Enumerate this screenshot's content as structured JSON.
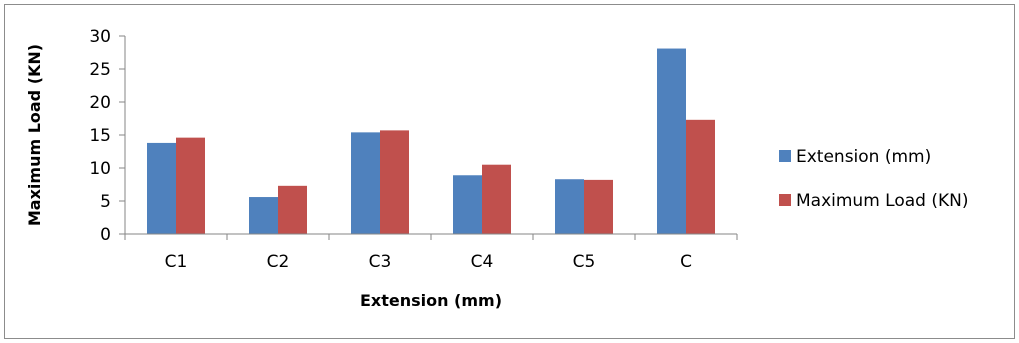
{
  "chart_data": {
    "type": "bar",
    "title": "",
    "xlabel": "Extension (mm)",
    "ylabel": "Maximum Load (KN)",
    "categories": [
      "C1",
      "C2",
      "C3",
      "C4",
      "C5",
      "C"
    ],
    "ylim": [
      0,
      30
    ],
    "yticks": [
      0,
      5,
      10,
      15,
      20,
      25,
      30
    ],
    "grid": false,
    "legend_position": "right",
    "series": [
      {
        "name": "Extension (mm)",
        "color": "#4f81bd",
        "values": [
          13.8,
          5.6,
          15.4,
          8.9,
          8.3,
          28.1
        ]
      },
      {
        "name": "Maximum Load (KN)",
        "color": "#c0504d",
        "values": [
          14.6,
          7.3,
          15.7,
          10.5,
          8.2,
          17.3
        ]
      }
    ]
  }
}
